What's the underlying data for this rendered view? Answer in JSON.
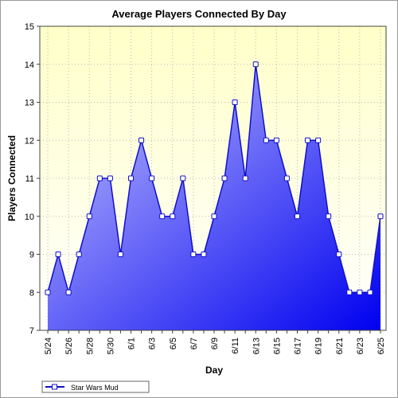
{
  "colors": {
    "line": "#1010c8",
    "marker_fill": "#ffffff",
    "fill_top": "#c8c8ff",
    "fill_bottom": "#0000f0",
    "plot_bg_top": "#ffffc8",
    "plot_bg_bottom": "#ffffff",
    "grid": "#b8b8b8",
    "axis": "#444444"
  },
  "chart_data": {
    "type": "area",
    "title": "Average Players Connected By Day",
    "xlabel": "Day",
    "ylabel": "Players Connected",
    "ylim": [
      7,
      15
    ],
    "yticks": [
      7,
      8,
      9,
      10,
      11,
      12,
      13,
      14,
      15
    ],
    "grid": true,
    "legend_position": "bottom-left",
    "x": [
      "5/24",
      "5/25",
      "5/26",
      "5/27",
      "5/28",
      "5/29",
      "5/30",
      "5/31",
      "6/1",
      "6/2",
      "6/3",
      "6/4",
      "6/5",
      "6/6",
      "6/7",
      "6/8",
      "6/9",
      "6/10",
      "6/11",
      "6/12",
      "6/13",
      "6/14",
      "6/15",
      "6/16",
      "6/17",
      "6/18",
      "6/19",
      "6/20",
      "6/21",
      "6/22",
      "6/23",
      "6/24",
      "6/25"
    ],
    "x_tick_labels": [
      "5/24",
      "5/26",
      "5/28",
      "5/30",
      "6/1",
      "6/3",
      "6/5",
      "6/7",
      "6/9",
      "6/11",
      "6/13",
      "6/15",
      "6/17",
      "6/19",
      "6/21",
      "6/23",
      "6/25"
    ],
    "series": [
      {
        "name": "Star Wars Mud",
        "values": [
          8,
          9,
          8,
          9,
          10,
          11,
          11,
          9,
          11,
          12,
          11,
          10,
          10,
          11,
          9,
          9,
          10,
          11,
          13,
          11,
          14,
          12,
          12,
          11,
          10,
          12,
          12,
          10,
          9,
          8,
          8,
          8,
          10
        ]
      }
    ]
  }
}
